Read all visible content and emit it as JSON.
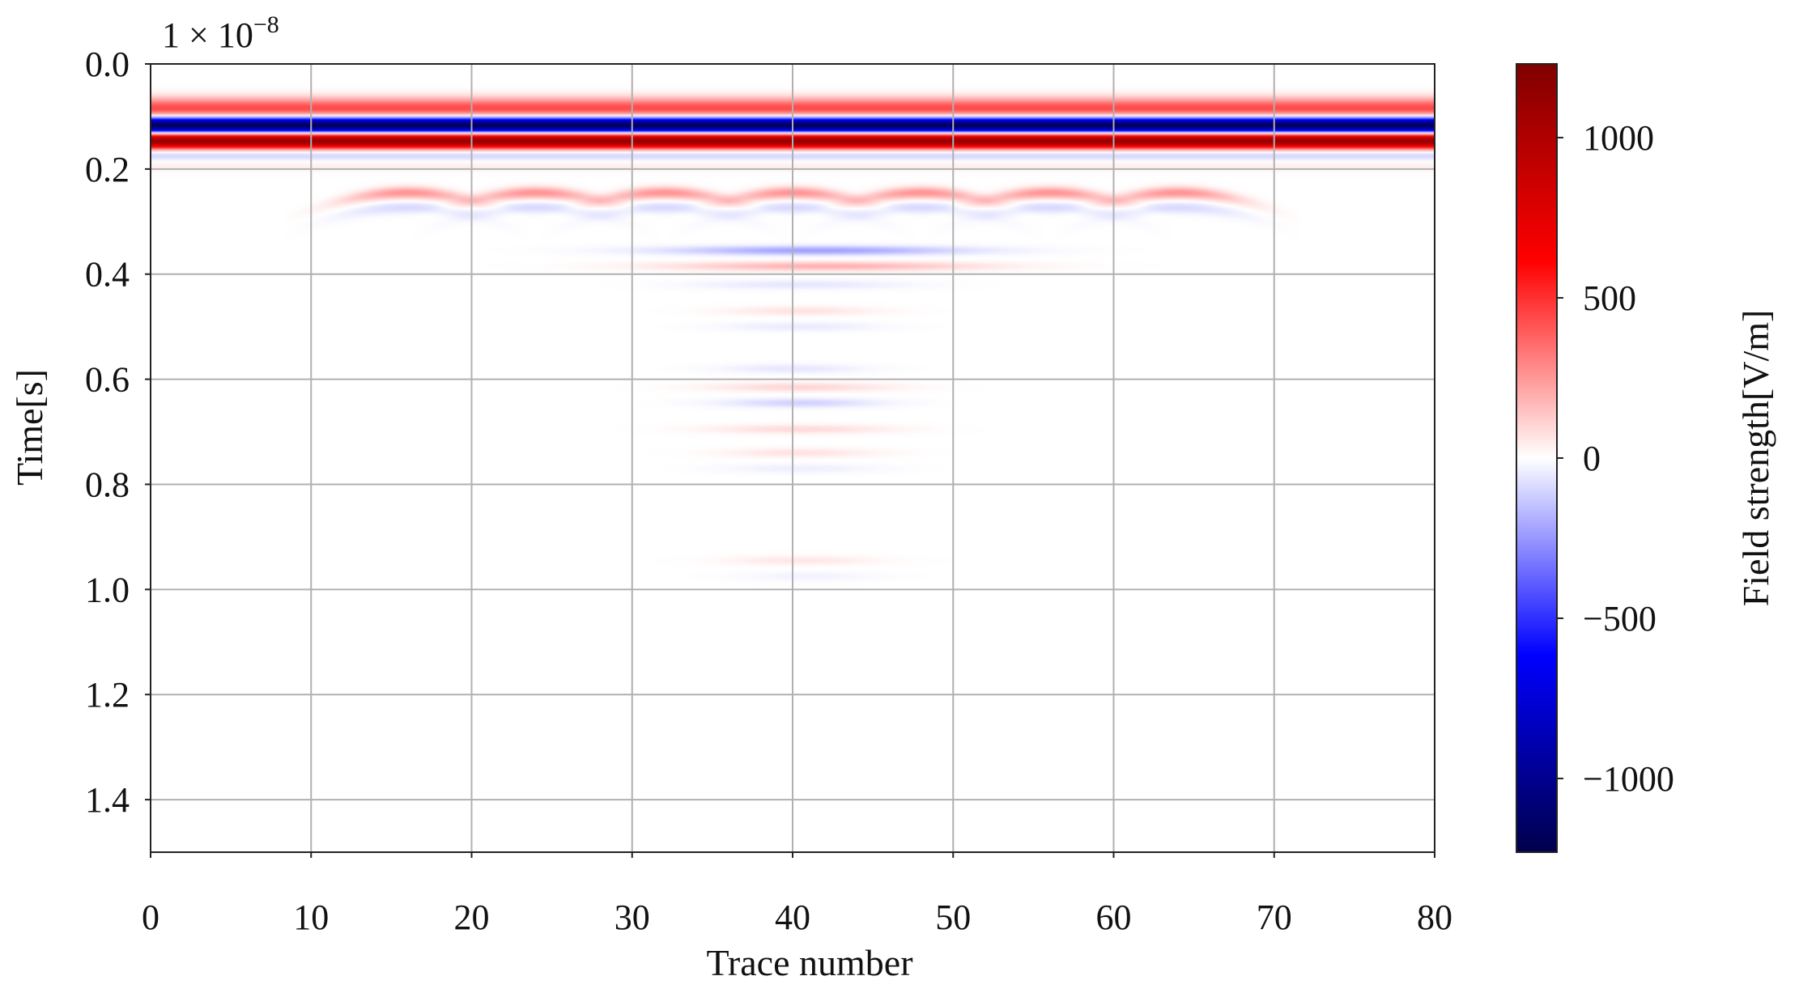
{
  "chart_data": {
    "type": "heatmap",
    "title": "",
    "xlabel": "Trace number",
    "ylabel": "Time[s]",
    "y_offset_text": {
      "base": "1 × 10",
      "exponent": "−8"
    },
    "xlim": [
      0,
      80
    ],
    "ylim": [
      1.5,
      0.0
    ],
    "y_inverted": true,
    "grid": true,
    "x_ticks": [
      0,
      10,
      20,
      30,
      40,
      50,
      60,
      70,
      80
    ],
    "x_tick_labels": [
      "0",
      "10",
      "20",
      "30",
      "40",
      "50",
      "60",
      "70",
      "80"
    ],
    "y_ticks": [
      0.0,
      0.2,
      0.4,
      0.6,
      0.8,
      1.0,
      1.2,
      1.4
    ],
    "y_tick_labels": [
      "0.0",
      "0.2",
      "0.4",
      "0.6",
      "0.8",
      "1.0",
      "1.2",
      "1.4"
    ],
    "colormap": "seismic",
    "colormap_stops": [
      "#00004c",
      "#0000ff",
      "#ffffff",
      "#ff0000",
      "#800000"
    ],
    "color_range": [
      -1230,
      1230
    ],
    "colorbar": {
      "label": "Field strength[V/m]",
      "ticks": [
        1000,
        500,
        0,
        -500,
        -1000
      ],
      "tick_labels": [
        "1000",
        "500",
        "0",
        "−500",
        "−1000"
      ],
      "placement": "right"
    },
    "direct_wave_bands": [
      {
        "time": 0.085,
        "value": 450,
        "width": 0.014
      },
      {
        "time": 0.117,
        "value": -1230,
        "width": 0.011
      },
      {
        "time": 0.146,
        "value": 1150,
        "width": 0.011
      },
      {
        "time": 0.172,
        "value": -160,
        "width": 0.01
      },
      {
        "time": 0.188,
        "value": 60,
        "width": 0.01
      }
    ],
    "hyperbolas": {
      "apex_traces": [
        16,
        24,
        32,
        40,
        48,
        56,
        64
      ],
      "apex_time": 0.245,
      "half_width_traces": 5,
      "events": [
        {
          "dt": 0.0,
          "value": 260
        },
        {
          "dt": 0.028,
          "value": -90
        }
      ]
    },
    "reflections": [
      {
        "time": 0.355,
        "x_range": [
          31,
          52
        ],
        "value": -230
      },
      {
        "time": 0.385,
        "x_range": [
          31,
          53
        ],
        "value": 190
      },
      {
        "time": 0.42,
        "x_range": [
          33,
          48
        ],
        "value": -60
      },
      {
        "time": 0.47,
        "x_range": [
          35,
          46
        ],
        "value": 70
      },
      {
        "time": 0.5,
        "x_range": [
          35,
          46
        ],
        "value": -50
      },
      {
        "time": 0.58,
        "x_range": [
          35,
          45
        ],
        "value": -60
      },
      {
        "time": 0.615,
        "x_range": [
          34,
          47
        ],
        "value": 100
      },
      {
        "time": 0.645,
        "x_range": [
          35,
          46
        ],
        "value": -110
      },
      {
        "time": 0.695,
        "x_range": [
          34,
          47
        ],
        "value": 90
      },
      {
        "time": 0.74,
        "x_range": [
          35,
          46
        ],
        "value": 70
      },
      {
        "time": 0.77,
        "x_range": [
          35,
          46
        ],
        "value": -40
      },
      {
        "time": 0.945,
        "x_range": [
          35,
          46
        ],
        "value": 60
      },
      {
        "time": 0.975,
        "x_range": [
          36,
          46
        ],
        "value": -30
      }
    ]
  }
}
